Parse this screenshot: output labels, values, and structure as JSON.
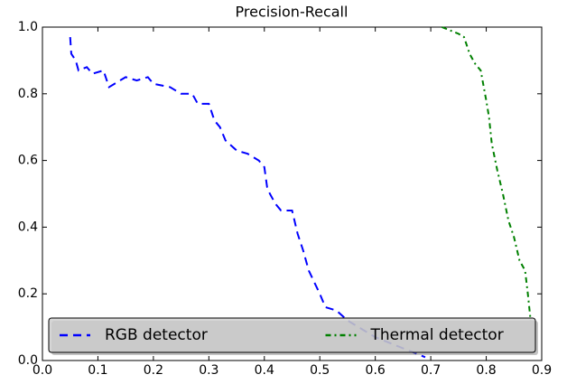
{
  "chart_data": {
    "type": "line",
    "title": "Precision-Recall",
    "series": [
      {
        "name": "RGB detector",
        "color": "#0000ff",
        "style": "dashed",
        "x": [
          0.05,
          0.052,
          0.06,
          0.065,
          0.08,
          0.09,
          0.11,
          0.12,
          0.13,
          0.15,
          0.17,
          0.19,
          0.2,
          0.23,
          0.25,
          0.27,
          0.28,
          0.3,
          0.31,
          0.32,
          0.33,
          0.35,
          0.37,
          0.39,
          0.4,
          0.405,
          0.41,
          0.42,
          0.43,
          0.45,
          0.46,
          0.47,
          0.48,
          0.5,
          0.51,
          0.53,
          0.55,
          0.57,
          0.6,
          0.63,
          0.66,
          0.69
        ],
        "values": [
          0.97,
          0.92,
          0.9,
          0.87,
          0.88,
          0.86,
          0.87,
          0.82,
          0.83,
          0.85,
          0.84,
          0.85,
          0.83,
          0.82,
          0.8,
          0.8,
          0.77,
          0.77,
          0.72,
          0.7,
          0.66,
          0.63,
          0.62,
          0.6,
          0.58,
          0.52,
          0.5,
          0.47,
          0.45,
          0.45,
          0.38,
          0.33,
          0.27,
          0.2,
          0.16,
          0.15,
          0.12,
          0.1,
          0.07,
          0.05,
          0.03,
          0.01
        ]
      },
      {
        "name": "Thermal detector",
        "color": "#008000",
        "style": "dashdot",
        "x": [
          0.72,
          0.75,
          0.76,
          0.77,
          0.78,
          0.79,
          0.8,
          0.805,
          0.81,
          0.82,
          0.83,
          0.84,
          0.85,
          0.86,
          0.87,
          0.875,
          0.88
        ],
        "values": [
          1.0,
          0.98,
          0.97,
          0.92,
          0.89,
          0.87,
          0.78,
          0.73,
          0.65,
          0.57,
          0.5,
          0.42,
          0.37,
          0.3,
          0.27,
          0.2,
          0.12
        ]
      }
    ],
    "xlim": [
      0,
      0.9
    ],
    "ylim": [
      0,
      1
    ],
    "xticks": [
      {
        "value": 0,
        "label": "0.0"
      },
      0.1,
      0.2,
      0.3,
      0.4,
      0.5,
      0.6,
      0.7,
      0.8,
      0.9
    ],
    "yticks": [
      {
        "value": 0,
        "label": "0.0"
      },
      0.2,
      0.4,
      0.6,
      0.8,
      {
        "value": 1,
        "label": "1.0"
      }
    ],
    "grid": false,
    "legend": "lower center"
  }
}
